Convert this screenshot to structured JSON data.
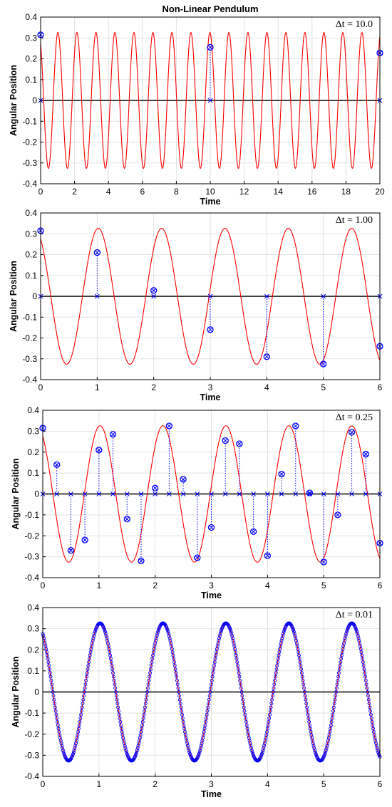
{
  "chart_data": [
    {
      "type": "line",
      "title": "Non-Linear Pendulum",
      "dt_label": "Δt = 10.0",
      "xlabel": "Time",
      "ylabel": "Angular Position",
      "xlim": [
        0,
        20
      ],
      "ylim": [
        -0.4,
        0.4
      ],
      "xticks": [
        "0",
        "2",
        "4",
        "6",
        "8",
        "10",
        "12",
        "14",
        "16",
        "18",
        "20"
      ],
      "yticks": [
        "-0.4",
        "-0.3",
        "-0.2",
        "-0.1",
        "0",
        "0.1",
        "0.2",
        "0.3",
        "0.4"
      ],
      "grid": true,
      "colors": {
        "curve": "#ff0000",
        "samples": "#0000ff",
        "zero": "#000000"
      },
      "series": [
        {
          "kind": "continuous",
          "amplitude": 0.326,
          "period": 1.12,
          "phase": 0.1
        },
        {
          "kind": "samples",
          "x": [
            0,
            10,
            20
          ],
          "y": [
            0.315,
            0.255,
            0.228
          ]
        }
      ]
    },
    {
      "type": "line",
      "title": "",
      "dt_label": "Δt = 1.00",
      "xlabel": "Time",
      "ylabel": "Angular Position",
      "xlim": [
        0,
        6
      ],
      "ylim": [
        -0.4,
        0.4
      ],
      "xticks": [
        "0",
        "1",
        "2",
        "3",
        "4",
        "5",
        "6"
      ],
      "yticks": [
        "-0.4",
        "-0.3",
        "-0.2",
        "-0.1",
        "0",
        "0.1",
        "0.2",
        "0.3",
        "0.4"
      ],
      "grid": true,
      "colors": {
        "curve": "#ff0000",
        "samples": "#0000ff",
        "zero": "#000000"
      },
      "series": [
        {
          "kind": "continuous",
          "amplitude": 0.326,
          "period": 1.12,
          "phase": 0.1
        },
        {
          "kind": "samples",
          "x": [
            0,
            1,
            2,
            3,
            4,
            5,
            6
          ],
          "y": [
            0.315,
            0.21,
            0.028,
            -0.16,
            -0.29,
            -0.325,
            -0.24
          ]
        }
      ]
    },
    {
      "type": "line",
      "title": "",
      "dt_label": "Δt = 0.25",
      "xlabel": "Time",
      "ylabel": "Angular Position",
      "xlim": [
        0,
        6
      ],
      "ylim": [
        -0.4,
        0.4
      ],
      "xticks": [
        "0",
        "1",
        "2",
        "3",
        "4",
        "5",
        "6"
      ],
      "yticks": [
        "-0.4",
        "-0.3",
        "-0.2",
        "-0.1",
        "0",
        "0.1",
        "0.2",
        "0.3",
        "0.4"
      ],
      "grid": true,
      "colors": {
        "curve": "#ff0000",
        "samples": "#0000ff",
        "zero": "#000000"
      },
      "series": [
        {
          "kind": "continuous",
          "amplitude": 0.326,
          "period": 1.12,
          "phase": 0.1
        },
        {
          "kind": "samples",
          "x": [
            0,
            0.25,
            0.5,
            0.75,
            1,
            1.25,
            1.5,
            1.75,
            2,
            2.25,
            2.5,
            2.75,
            3,
            3.25,
            3.5,
            3.75,
            4,
            4.25,
            4.5,
            4.75,
            5,
            5.25,
            5.5,
            5.75,
            6
          ],
          "y": [
            0.315,
            0.14,
            -0.27,
            -0.22,
            0.21,
            0.285,
            -0.12,
            -0.32,
            0.028,
            0.325,
            0.07,
            -0.305,
            -0.16,
            0.255,
            0.24,
            -0.18,
            -0.295,
            0.095,
            0.325,
            0.005,
            -0.325,
            -0.1,
            0.295,
            0.19,
            -0.235
          ]
        }
      ]
    },
    {
      "type": "line",
      "title": "",
      "dt_label": "Δt = 0.01",
      "xlabel": "Time",
      "ylabel": "Angular Position",
      "xlim": [
        0,
        6
      ],
      "ylim": [
        -0.4,
        0.4
      ],
      "xticks": [
        "0",
        "1",
        "2",
        "3",
        "4",
        "5",
        "6"
      ],
      "yticks": [
        "-0.4",
        "-0.3",
        "-0.2",
        "-0.1",
        "0",
        "0.1",
        "0.2",
        "0.3",
        "0.4"
      ],
      "grid": true,
      "colors": {
        "curve": "#ff0000",
        "samples": "#0000ff",
        "zero": "#000000"
      },
      "series": [
        {
          "kind": "continuous",
          "amplitude": 0.326,
          "period": 1.12,
          "phase": 0.1
        },
        {
          "kind": "dense_samples",
          "step": 0.01,
          "amplitude": 0.326,
          "period": 1.12,
          "phase": 0.1
        }
      ]
    }
  ]
}
